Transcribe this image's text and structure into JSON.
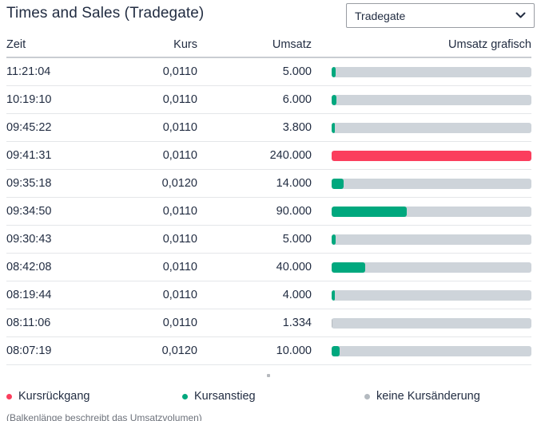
{
  "header": {
    "title": "Times and Sales (Tradegate)",
    "exchange_select": {
      "value": "Tradegate",
      "options": [
        "Tradegate"
      ]
    }
  },
  "table": {
    "columns": [
      "Zeit",
      "Kurs",
      "Umsatz",
      "Umsatz grafisch"
    ],
    "rows": [
      {
        "zeit": "11:21:04",
        "kurs": "0,0110",
        "umsatz": "5.000",
        "direction": "up"
      },
      {
        "zeit": "10:19:10",
        "kurs": "0,0110",
        "umsatz": "6.000",
        "direction": "up"
      },
      {
        "zeit": "09:45:22",
        "kurs": "0,0110",
        "umsatz": "3.800",
        "direction": "up"
      },
      {
        "zeit": "09:41:31",
        "kurs": "0,0110",
        "umsatz": "240.000",
        "direction": "down"
      },
      {
        "zeit": "09:35:18",
        "kurs": "0,0120",
        "umsatz": "14.000",
        "direction": "up"
      },
      {
        "zeit": "09:34:50",
        "kurs": "0,0110",
        "umsatz": "90.000",
        "direction": "up"
      },
      {
        "zeit": "09:30:43",
        "kurs": "0,0110",
        "umsatz": "5.000",
        "direction": "up"
      },
      {
        "zeit": "08:42:08",
        "kurs": "0,0110",
        "umsatz": "40.000",
        "direction": "up"
      },
      {
        "zeit": "08:19:44",
        "kurs": "0,0110",
        "umsatz": "4.000",
        "direction": "up"
      },
      {
        "zeit": "08:11:06",
        "kurs": "0,0110",
        "umsatz": "1.334",
        "direction": "neutral"
      },
      {
        "zeit": "08:07:19",
        "kurs": "0,0120",
        "umsatz": "10.000",
        "direction": "up"
      }
    ],
    "max_volume_row": "240.000"
  },
  "legend": {
    "items": [
      {
        "label": "Kursrückgang",
        "direction": "down"
      },
      {
        "label": "Kursanstieg",
        "direction": "up"
      },
      {
        "label": "keine Kursänderung",
        "direction": "neutral"
      }
    ]
  },
  "footnote": "(Balkenlänge beschreibt das Umsatzvolumen)",
  "colors": {
    "down": "#fb3e5d",
    "up": "#00a87e",
    "neutral": "#b4bac0",
    "track": "#ced4da",
    "text": "#222d42"
  }
}
